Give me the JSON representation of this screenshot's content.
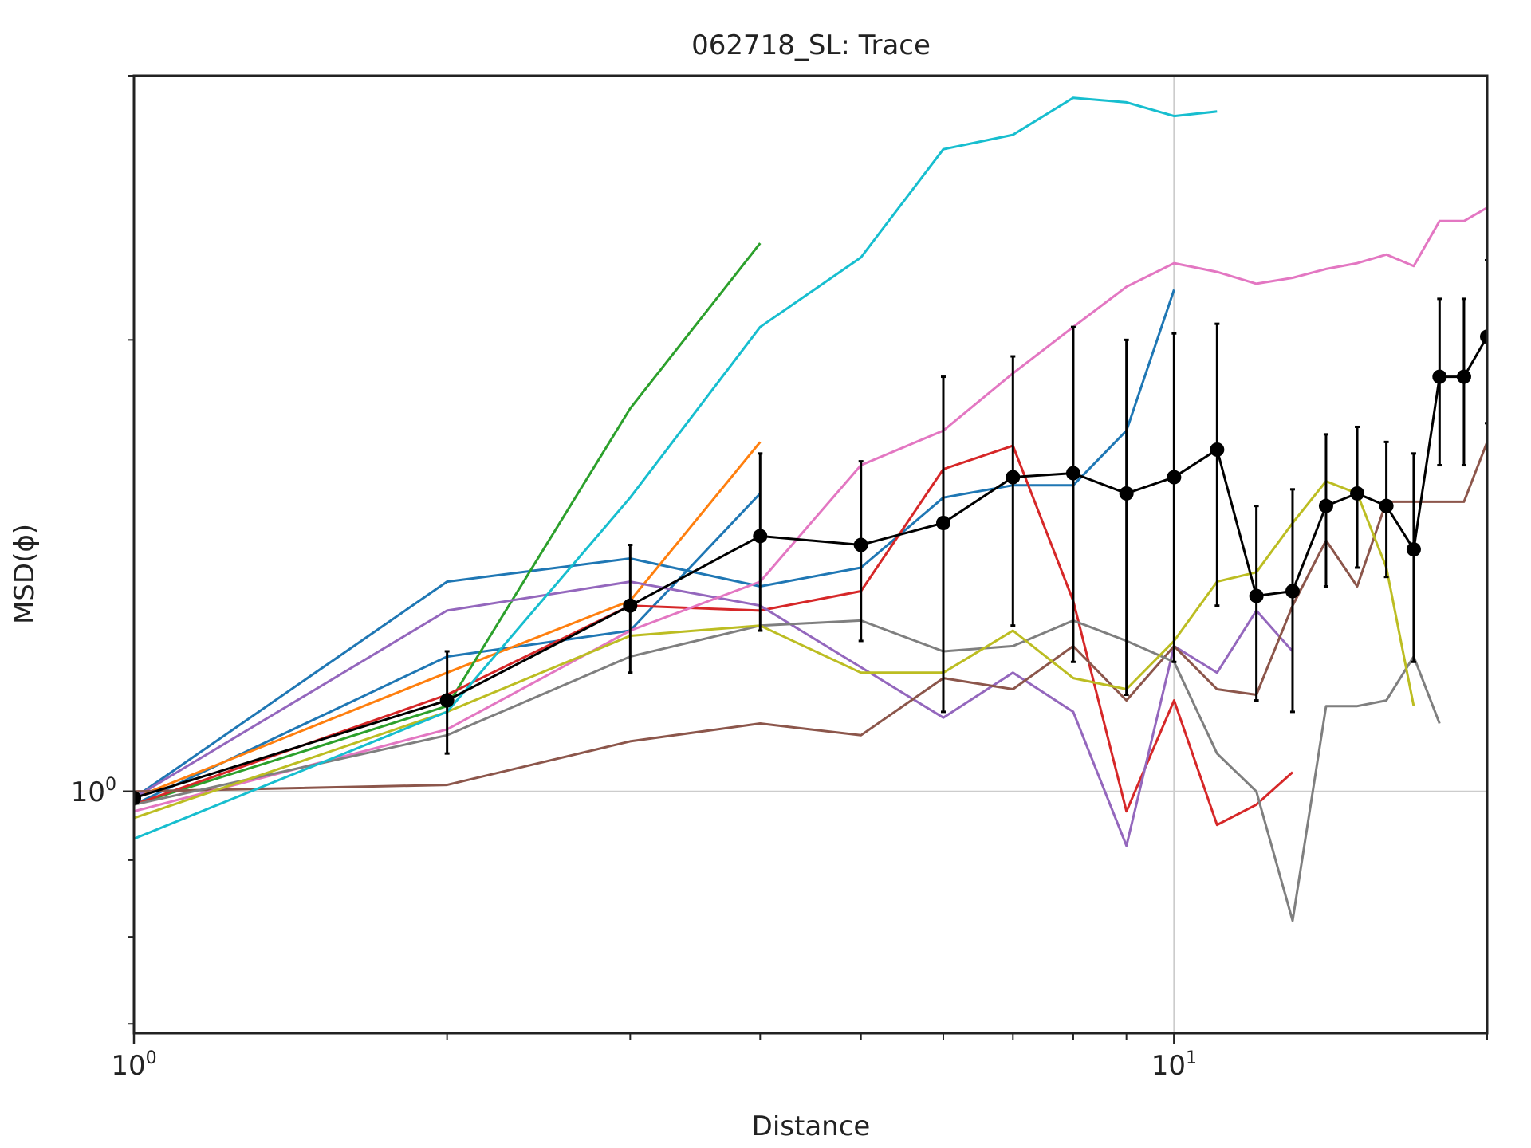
{
  "chart_data": {
    "type": "line",
    "title": "062718_SL: Trace",
    "xlabel": "Distance",
    "ylabel": "MSD(ϕ)",
    "x_scale": "log",
    "y_scale": "log",
    "xlim": [
      1,
      20
    ],
    "ylim": [
      0.69,
      3.0
    ],
    "grid": "at 10^0 only",
    "x_ticks": [
      {
        "base": "10",
        "exp": "0",
        "value": 1
      },
      {
        "base": "10",
        "exp": "1",
        "value": 10
      }
    ],
    "y_ticks": [
      {
        "base": "10",
        "exp": "0",
        "value": 1
      }
    ],
    "series": [
      {
        "color": "#1f77b4",
        "x": [
          1,
          2,
          3,
          4,
          5,
          6,
          7,
          8,
          9,
          10
        ],
        "y": [
          0.99,
          1.38,
          1.43,
          1.37,
          1.41,
          1.57,
          1.6,
          1.6,
          1.74,
          2.16
        ]
      },
      {
        "color": "#1f77b4",
        "x": [
          1,
          2,
          3,
          4
        ],
        "y": [
          0.98,
          1.23,
          1.28,
          1.58
        ]
      },
      {
        "color": "#ff7f0e",
        "x": [
          1,
          2,
          3,
          4
        ],
        "y": [
          0.99,
          1.2,
          1.34,
          1.71
        ]
      },
      {
        "color": "#2ca02c",
        "x": [
          1,
          2,
          3,
          4
        ],
        "y": [
          0.98,
          1.14,
          1.8,
          2.32
        ]
      },
      {
        "color": "#d62728",
        "x": [
          1,
          2,
          3,
          4,
          5,
          6,
          7,
          8,
          9,
          10,
          11,
          12,
          13
        ],
        "y": [
          0.98,
          1.16,
          1.33,
          1.32,
          1.36,
          1.64,
          1.7,
          1.34,
          0.97,
          1.15,
          0.95,
          0.98,
          1.03
        ]
      },
      {
        "color": "#9467bd",
        "x": [
          1,
          2,
          3,
          4,
          5,
          6,
          7,
          8,
          9,
          10,
          11,
          12,
          13
        ],
        "y": [
          0.99,
          1.32,
          1.38,
          1.33,
          1.21,
          1.12,
          1.2,
          1.13,
          0.92,
          1.25,
          1.2,
          1.32,
          1.24
        ]
      },
      {
        "color": "#8c564b",
        "x": [
          1,
          2,
          3,
          4,
          5,
          6,
          7,
          8,
          9,
          10,
          11,
          12,
          13,
          14,
          15,
          16,
          17,
          18,
          19,
          20
        ],
        "y": [
          1.0,
          1.01,
          1.08,
          1.11,
          1.09,
          1.19,
          1.17,
          1.25,
          1.15,
          1.25,
          1.17,
          1.16,
          1.33,
          1.47,
          1.37,
          1.56,
          1.56,
          1.56,
          1.56,
          1.71
        ]
      },
      {
        "color": "#e377c2",
        "x": [
          1,
          2,
          3,
          4,
          5,
          6,
          7,
          8,
          9,
          10,
          11,
          12,
          13,
          14,
          15,
          16,
          17,
          18,
          19,
          20
        ],
        "y": [
          0.97,
          1.1,
          1.28,
          1.38,
          1.65,
          1.74,
          1.9,
          2.04,
          2.17,
          2.25,
          2.22,
          2.18,
          2.2,
          2.23,
          2.25,
          2.28,
          2.24,
          2.4,
          2.4,
          2.45
        ]
      },
      {
        "color": "#7f7f7f",
        "x": [
          1,
          2,
          3,
          4,
          5,
          6,
          7,
          8,
          9,
          10,
          11,
          12,
          13,
          14,
          15,
          16,
          17,
          18
        ],
        "y": [
          0.98,
          1.09,
          1.23,
          1.29,
          1.3,
          1.24,
          1.25,
          1.3,
          1.26,
          1.22,
          1.06,
          1.0,
          0.82,
          1.14,
          1.14,
          1.15,
          1.23,
          1.11
        ]
      },
      {
        "color": "#bcbd22",
        "x": [
          1,
          2,
          3,
          4,
          5,
          6,
          7,
          8,
          9,
          10,
          11,
          12,
          13,
          14,
          15,
          16,
          17
        ],
        "y": [
          0.96,
          1.13,
          1.27,
          1.29,
          1.2,
          1.2,
          1.28,
          1.19,
          1.17,
          1.26,
          1.38,
          1.4,
          1.51,
          1.61,
          1.58,
          1.41,
          1.14
        ]
      },
      {
        "color": "#17becf",
        "x": [
          1,
          2,
          3,
          4,
          5,
          6,
          7,
          8,
          9,
          10,
          11
        ],
        "y": [
          0.93,
          1.13,
          1.57,
          2.04,
          2.27,
          2.68,
          2.74,
          2.9,
          2.88,
          2.82,
          2.84
        ]
      },
      {
        "color": "#000000",
        "x": [
          1,
          2,
          3,
          4,
          5,
          6,
          7,
          8,
          9,
          10,
          11,
          12,
          13,
          14,
          15,
          16,
          17,
          18,
          19,
          20
        ],
        "y": [
          0.99,
          1.15,
          1.33,
          1.48,
          1.46,
          1.51,
          1.62,
          1.63,
          1.58,
          1.62,
          1.69,
          1.35,
          1.36,
          1.55,
          1.58,
          1.55,
          1.45,
          1.89,
          1.89,
          2.01
        ],
        "yerr": [
          0.0,
          0.09,
          0.13,
          0.2,
          0.2,
          0.38,
          0.33,
          0.41,
          0.42,
          0.4,
          0.36,
          0.2,
          0.23,
          0.18,
          0.17,
          0.16,
          0.23,
          0.24,
          0.24,
          0.25
        ]
      }
    ]
  }
}
